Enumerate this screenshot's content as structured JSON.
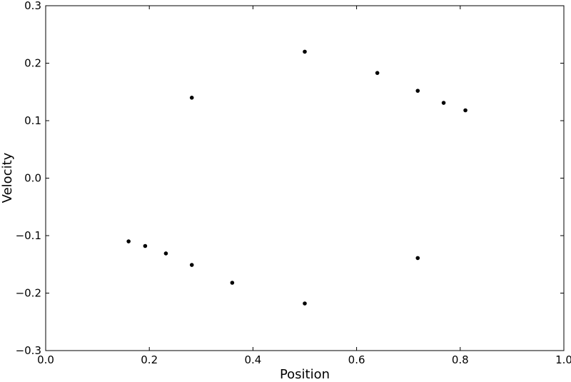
{
  "chart_data": {
    "type": "scatter",
    "title": "",
    "xlabel": "Position",
    "ylabel": "Velocity",
    "xlim": [
      0.0,
      1.0
    ],
    "ylim": [
      -0.3,
      0.3
    ],
    "xticks": [
      "0.0",
      "0.2",
      "0.4",
      "0.6",
      "0.8",
      "1.0"
    ],
    "yticks": [
      "−0.3",
      "−0.2",
      "−0.1",
      "0.0",
      "0.1",
      "0.2",
      "0.3"
    ],
    "grid": false,
    "marker_color": "#000000",
    "series": [
      {
        "points": [
          [
            0.5,
            0.22
          ],
          [
            0.5,
            -0.218
          ],
          [
            0.64,
            0.183
          ],
          [
            0.36,
            -0.182
          ],
          [
            0.718,
            0.152
          ],
          [
            0.282,
            -0.151
          ],
          [
            0.768,
            0.131
          ],
          [
            0.232,
            -0.131
          ],
          [
            0.282,
            0.14
          ],
          [
            0.718,
            -0.139
          ],
          [
            0.81,
            0.118
          ],
          [
            0.192,
            -0.118
          ],
          [
            0.16,
            -0.11
          ]
        ]
      }
    ]
  }
}
